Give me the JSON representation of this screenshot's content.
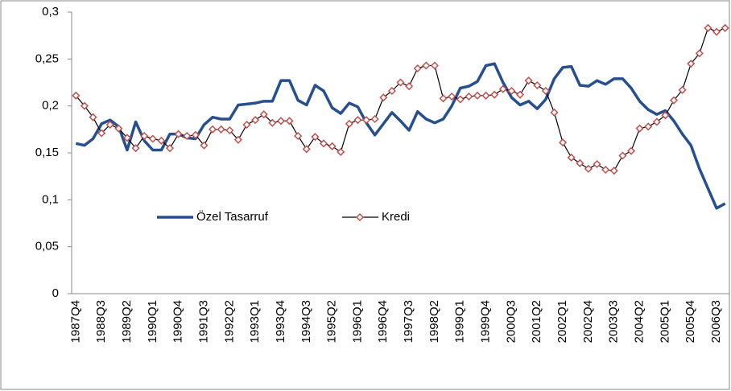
{
  "chart_data": {
    "type": "line",
    "categories": [
      "1987Q4",
      null,
      null,
      "1988Q3",
      null,
      null,
      "1989Q2",
      null,
      null,
      "1990Q1",
      null,
      null,
      "1990Q4",
      null,
      null,
      "1991Q3",
      null,
      null,
      "1992Q2",
      null,
      null,
      "1993Q1",
      null,
      null,
      "1993Q4",
      null,
      null,
      "1994Q3",
      null,
      null,
      "1995Q2",
      null,
      null,
      "1996Q1",
      null,
      null,
      "1996Q4",
      null,
      null,
      "1997Q3",
      null,
      null,
      "1998Q2",
      null,
      null,
      "1999Q1",
      null,
      null,
      "1999Q4",
      null,
      null,
      "2000Q3",
      null,
      null,
      "2001Q2",
      null,
      null,
      "2002Q1",
      null,
      null,
      "2002Q4",
      null,
      null,
      "2003Q3",
      null,
      null,
      "2004Q2",
      null,
      null,
      "2005Q1",
      null,
      null,
      "2005Q4",
      null,
      null,
      "2006Q3",
      null
    ],
    "series": [
      {
        "name": "Özel Tasarruf",
        "color": "#254f8f",
        "values": [
          0.16,
          0.158,
          0.165,
          0.181,
          0.185,
          0.178,
          0.153,
          0.183,
          0.163,
          0.153,
          0.153,
          0.17,
          0.17,
          0.166,
          0.165,
          0.18,
          0.188,
          0.186,
          0.186,
          0.201,
          0.202,
          0.203,
          0.205,
          0.205,
          0.227,
          0.227,
          0.206,
          0.201,
          0.222,
          0.216,
          0.198,
          0.192,
          0.203,
          0.199,
          0.182,
          0.169,
          0.181,
          0.193,
          0.184,
          0.174,
          0.194,
          0.186,
          0.182,
          0.186,
          0.2,
          0.219,
          0.221,
          0.226,
          0.243,
          0.245,
          0.225,
          0.209,
          0.201,
          0.205,
          0.197,
          0.207,
          0.229,
          0.241,
          0.242,
          0.222,
          0.221,
          0.227,
          0.223,
          0.229,
          0.229,
          0.219,
          0.205,
          0.196,
          0.191,
          0.195,
          0.184,
          0.17,
          0.158,
          0.133,
          0.112,
          0.091,
          0.096
        ]
      },
      {
        "name": "Kredi",
        "color": "#c0504d",
        "values": [
          0.211,
          0.2,
          0.188,
          0.171,
          0.18,
          0.176,
          0.166,
          0.155,
          0.168,
          0.165,
          0.163,
          0.155,
          0.17,
          0.168,
          0.169,
          0.158,
          0.175,
          0.175,
          0.174,
          0.164,
          0.18,
          0.185,
          0.191,
          0.182,
          0.184,
          0.184,
          0.168,
          0.154,
          0.167,
          0.16,
          0.157,
          0.151,
          0.181,
          0.185,
          0.185,
          0.186,
          0.209,
          0.216,
          0.225,
          0.221,
          0.24,
          0.243,
          0.243,
          0.208,
          0.21,
          0.207,
          0.21,
          0.211,
          0.211,
          0.212,
          0.218,
          0.216,
          0.212,
          0.227,
          0.222,
          0.216,
          0.193,
          0.161,
          0.145,
          0.139,
          0.133,
          0.138,
          0.132,
          0.131,
          0.147,
          0.152,
          0.176,
          0.178,
          0.183,
          0.19,
          0.206,
          0.217,
          0.245,
          0.256,
          0.283,
          0.279,
          0.283
        ]
      }
    ],
    "ylim": [
      0,
      0.3
    ],
    "yticks": [
      {
        "value": 0,
        "label": "0"
      },
      {
        "value": 0.05,
        "label": "0,05"
      },
      {
        "value": 0.1,
        "label": "0,1"
      },
      {
        "value": 0.15,
        "label": "0,15"
      },
      {
        "value": 0.2,
        "label": "0,2"
      },
      {
        "value": 0.25,
        "label": "0,25"
      },
      {
        "value": 0.3,
        "label": "0,3"
      }
    ],
    "grid": false
  }
}
